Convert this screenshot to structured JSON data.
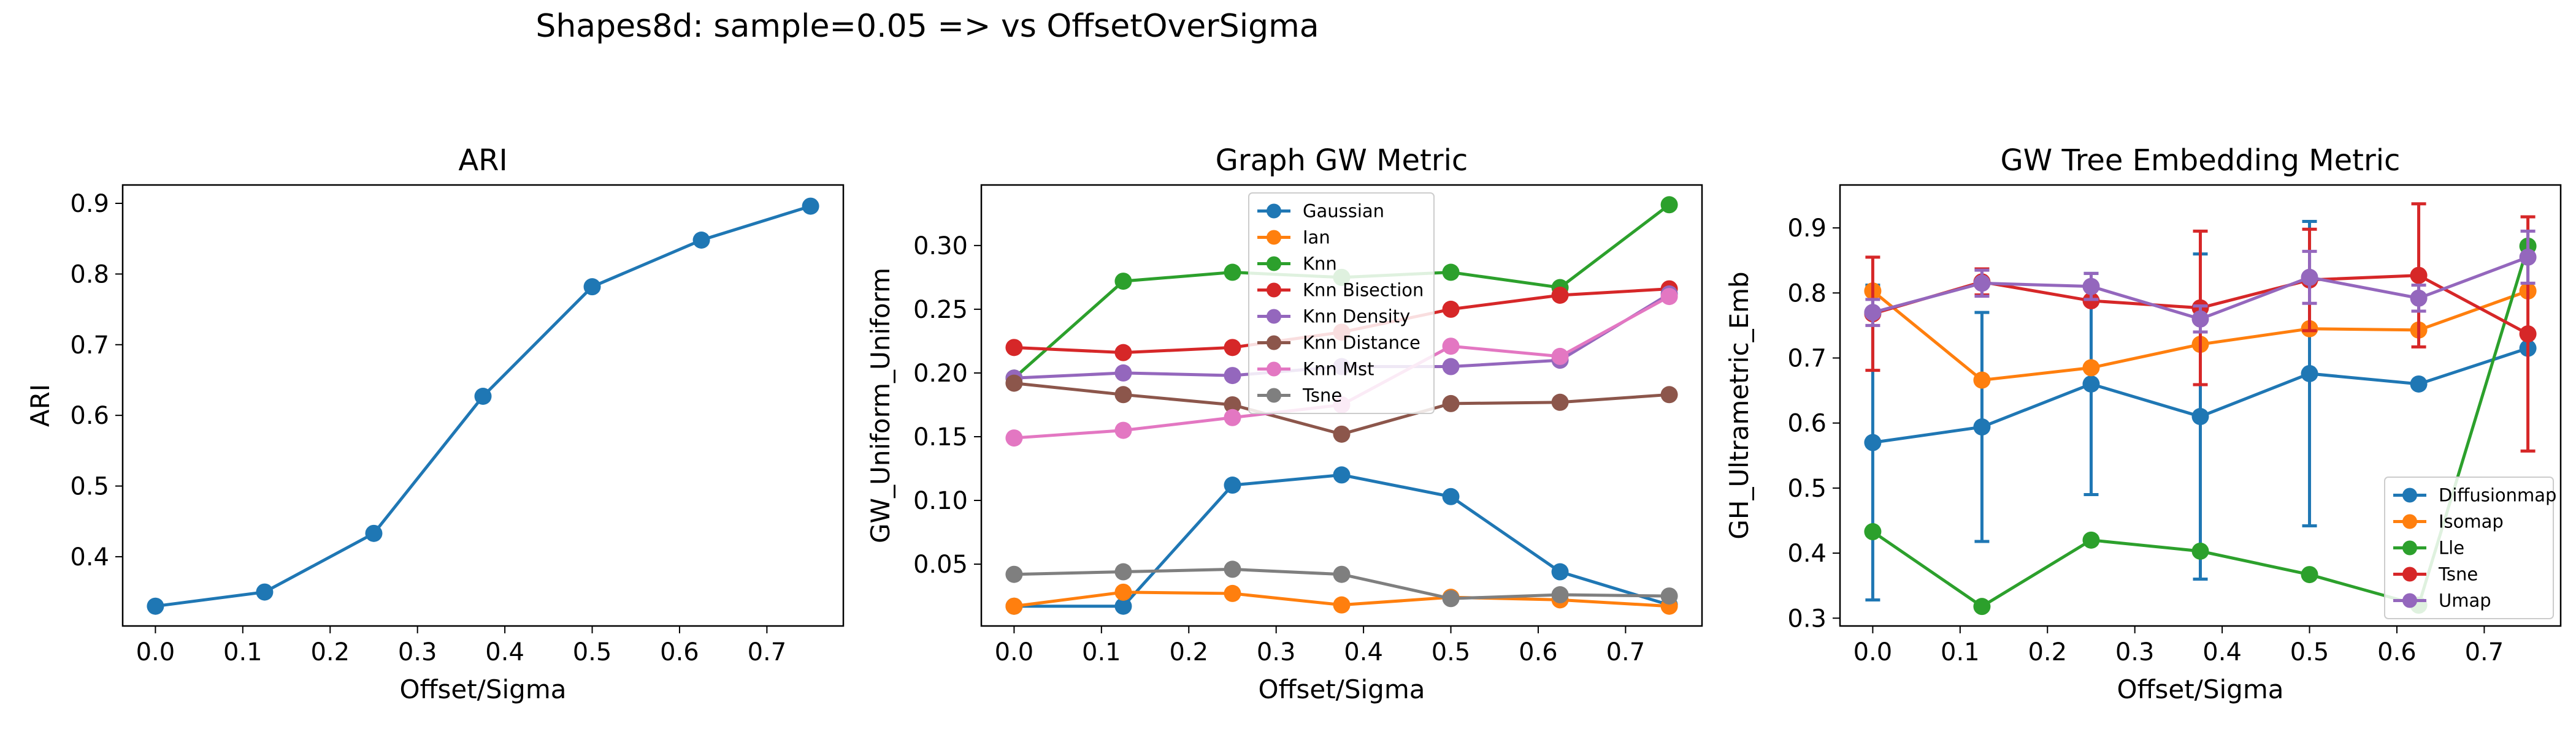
{
  "figure": {
    "suptitle": "Shapes8d: sample=0.05 => vs OffsetOverSigma"
  },
  "palette": [
    "#1f77b4",
    "#ff7f0e",
    "#2ca02c",
    "#d62728",
    "#9467bd",
    "#8c564b",
    "#e377c2",
    "#7f7f7f"
  ],
  "chart_data": [
    {
      "type": "line",
      "title": "ARI",
      "xlabel": "Offset/Sigma",
      "ylabel": "ARI",
      "xlim": [
        -0.0375,
        0.7875
      ],
      "ylim": [
        0.302,
        0.926
      ],
      "xticks": [
        0.0,
        0.1,
        0.2,
        0.3,
        0.4,
        0.5,
        0.6,
        0.7
      ],
      "xtick_labels": [
        "0.0",
        "0.1",
        "0.2",
        "0.3",
        "0.4",
        "0.5",
        "0.6",
        "0.7"
      ],
      "yticks": [
        0.4,
        0.5,
        0.6,
        0.7,
        0.8,
        0.9
      ],
      "ytick_labels": [
        "0.4",
        "0.5",
        "0.6",
        "0.7",
        "0.8",
        "0.9"
      ],
      "grid": false,
      "legend": null,
      "x": [
        0.0,
        0.125,
        0.25,
        0.375,
        0.5,
        0.625,
        0.75
      ],
      "series": [
        {
          "values": [
            0.33,
            0.35,
            0.433,
            0.627,
            0.782,
            0.848,
            0.896
          ]
        }
      ]
    },
    {
      "type": "line",
      "title": "Graph GW Metric",
      "xlabel": "Offset/Sigma",
      "ylabel": "GW_Uniform_Uniform",
      "xlim": [
        -0.0375,
        0.7875
      ],
      "ylim": [
        0.0015,
        0.3475
      ],
      "xticks": [
        0.0,
        0.1,
        0.2,
        0.3,
        0.4,
        0.5,
        0.6,
        0.7
      ],
      "xtick_labels": [
        "0.0",
        "0.1",
        "0.2",
        "0.3",
        "0.4",
        "0.5",
        "0.6",
        "0.7"
      ],
      "yticks": [
        0.05,
        0.1,
        0.15,
        0.2,
        0.25,
        0.3
      ],
      "ytick_labels": [
        "0.05",
        "0.10",
        "0.15",
        "0.20",
        "0.25",
        "0.30"
      ],
      "grid": false,
      "legend": "upper-center",
      "x": [
        0.0,
        0.125,
        0.25,
        0.375,
        0.5,
        0.625,
        0.75
      ],
      "series": [
        {
          "name": "Gaussian",
          "values": [
            0.017,
            0.017,
            0.112,
            0.12,
            0.103,
            0.044,
            0.018
          ]
        },
        {
          "name": "Ian",
          "values": [
            0.017,
            0.028,
            0.027,
            0.018,
            0.024,
            0.022,
            0.017
          ]
        },
        {
          "name": "Knn",
          "values": [
            0.196,
            0.272,
            0.279,
            0.275,
            0.279,
            0.267,
            0.332
          ]
        },
        {
          "name": "Knn Bisection",
          "values": [
            0.22,
            0.216,
            0.22,
            0.232,
            0.25,
            0.261,
            0.266
          ]
        },
        {
          "name": "Knn Density",
          "values": [
            0.196,
            0.2,
            0.198,
            0.205,
            0.205,
            0.21,
            0.262
          ]
        },
        {
          "name": "Knn Distance",
          "values": [
            0.192,
            0.183,
            0.175,
            0.152,
            0.176,
            0.177,
            0.183
          ]
        },
        {
          "name": "Knn Mst",
          "values": [
            0.149,
            0.155,
            0.165,
            0.175,
            0.221,
            0.213,
            0.26
          ]
        },
        {
          "name": "Tsne",
          "values": [
            0.042,
            0.044,
            0.046,
            0.042,
            0.023,
            0.026,
            0.025
          ]
        }
      ]
    },
    {
      "type": "line",
      "title": "GW Tree Embedding Metric",
      "xlabel": "Offset/Sigma",
      "ylabel": "GH_Ultrametric_Emb",
      "xlim": [
        -0.0375,
        0.7875
      ],
      "ylim": [
        0.288,
        0.966
      ],
      "xticks": [
        0.0,
        0.1,
        0.2,
        0.3,
        0.4,
        0.5,
        0.6,
        0.7
      ],
      "xtick_labels": [
        "0.0",
        "0.1",
        "0.2",
        "0.3",
        "0.4",
        "0.5",
        "0.6",
        "0.7"
      ],
      "yticks": [
        0.3,
        0.4,
        0.5,
        0.6,
        0.7,
        0.8,
        0.9
      ],
      "ytick_labels": [
        "0.3",
        "0.4",
        "0.5",
        "0.6",
        "0.7",
        "0.8",
        "0.9"
      ],
      "grid": false,
      "legend": "lower-right",
      "error_bars": true,
      "x": [
        0.0,
        0.125,
        0.25,
        0.375,
        0.5,
        0.625,
        0.75
      ],
      "series": [
        {
          "name": "Diffusionmap",
          "values": [
            0.57,
            0.594,
            0.66,
            0.61,
            0.676,
            0.66,
            0.715
          ],
          "errors": [
            0.242,
            0.176,
            0.17,
            0.25,
            0.234,
            0.0,
            0.0
          ]
        },
        {
          "name": "Isomap",
          "values": [
            0.803,
            0.666,
            0.685,
            0.721,
            0.745,
            0.743,
            0.803
          ],
          "errors": [
            0.0,
            0.0,
            0.0,
            0.0,
            0.0,
            0.0,
            0.0
          ]
        },
        {
          "name": "Lle",
          "values": [
            0.433,
            0.318,
            0.42,
            0.403,
            0.367,
            0.32,
            0.872
          ],
          "errors": [
            0.0,
            0.0,
            0.0,
            0.0,
            0.0,
            0.0,
            0.0
          ]
        },
        {
          "name": "Tsne",
          "values": [
            0.768,
            0.817,
            0.788,
            0.777,
            0.82,
            0.827,
            0.737
          ],
          "errors": [
            0.087,
            0.02,
            0.0,
            0.118,
            0.078,
            0.11,
            0.18
          ]
        },
        {
          "name": "Umap",
          "values": [
            0.77,
            0.815,
            0.81,
            0.76,
            0.824,
            0.792,
            0.855
          ],
          "errors": [
            0.02,
            0.02,
            0.02,
            0.02,
            0.04,
            0.02,
            0.04
          ]
        }
      ]
    }
  ]
}
